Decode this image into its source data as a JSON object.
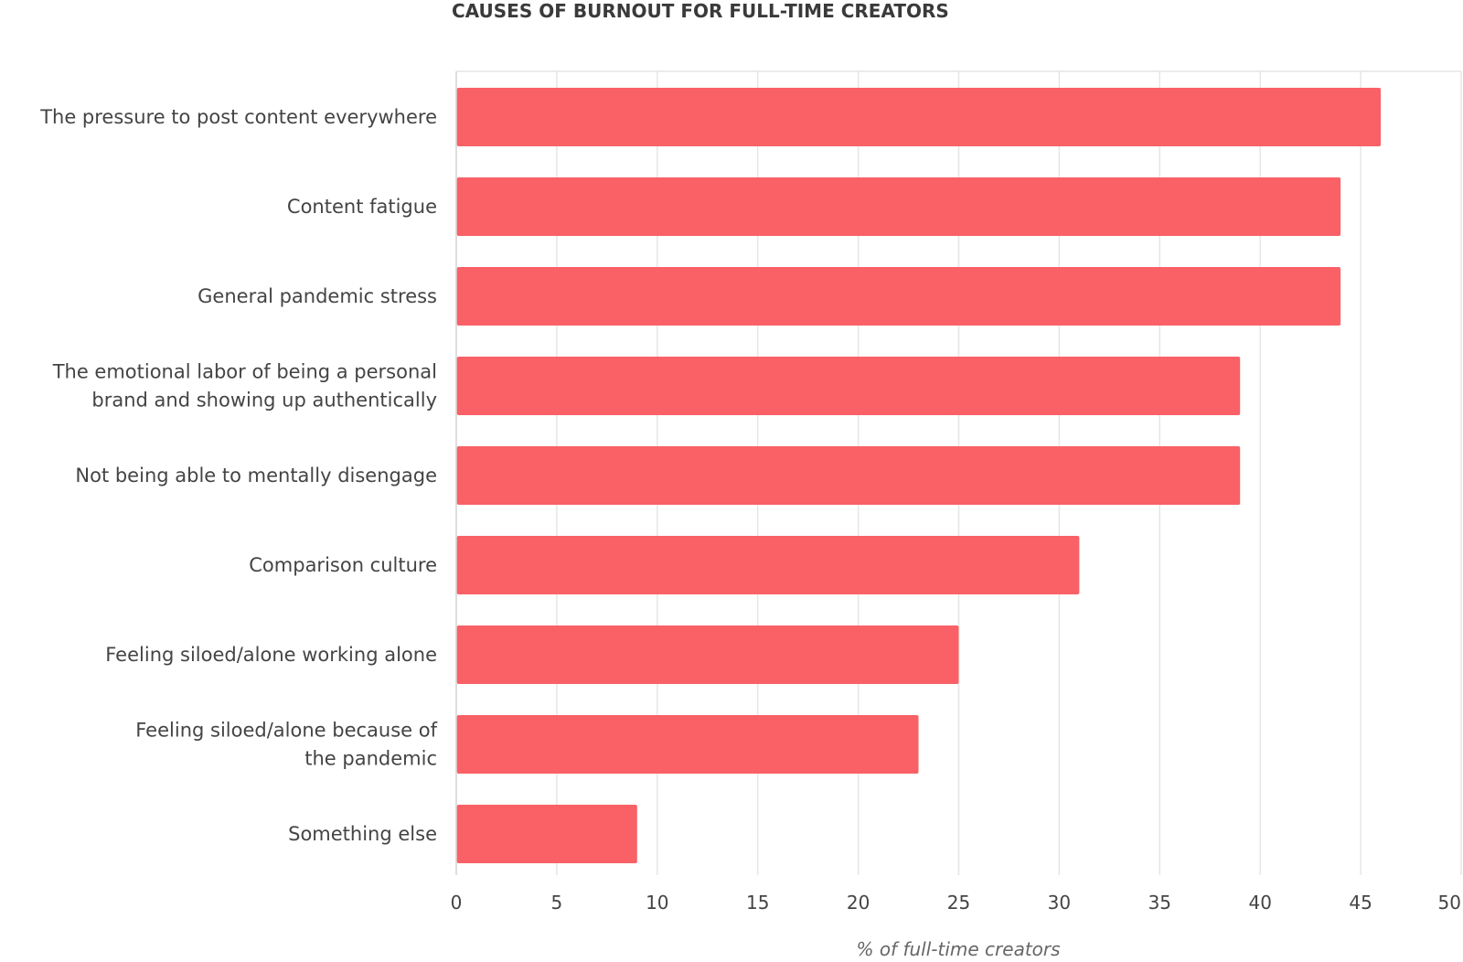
{
  "chart_data": {
    "type": "bar",
    "orientation": "horizontal",
    "title": "CAUSES OF BURNOUT FOR FULL-TIME CREATORS",
    "xlabel": "% of full-time creators",
    "ylabel": "",
    "categories": [
      "The pressure to post content everywhere",
      "Content fatigue",
      "General pandemic stress",
      "The emotional labor of being a personal brand and showing up authentically",
      "Not being able to mentally disengage",
      "Comparison culture",
      "Feeling siloed/alone working alone",
      "Feeling siloed/alone because of the pandemic",
      "Something else"
    ],
    "category_lines": [
      [
        "The pressure to post content everywhere"
      ],
      [
        "Content fatigue"
      ],
      [
        "General pandemic stress"
      ],
      [
        "The emotional labor of being a personal",
        "brand and showing up authentically"
      ],
      [
        "Not being able to mentally disengage"
      ],
      [
        "Comparison culture"
      ],
      [
        "Feeling siloed/alone working alone"
      ],
      [
        "Feeling siloed/alone because of",
        "the pandemic"
      ],
      [
        "Something else"
      ]
    ],
    "values": [
      46,
      44,
      44,
      39,
      39,
      31,
      25,
      23,
      9
    ],
    "xlim": [
      0,
      50
    ],
    "xticks": [
      0,
      5,
      10,
      15,
      20,
      25,
      30,
      35,
      40,
      45,
      50
    ],
    "grid": true,
    "legend": "none",
    "colors": {
      "bar": "#f96167",
      "grid": "#e6e6e6",
      "text": "#444444"
    }
  }
}
